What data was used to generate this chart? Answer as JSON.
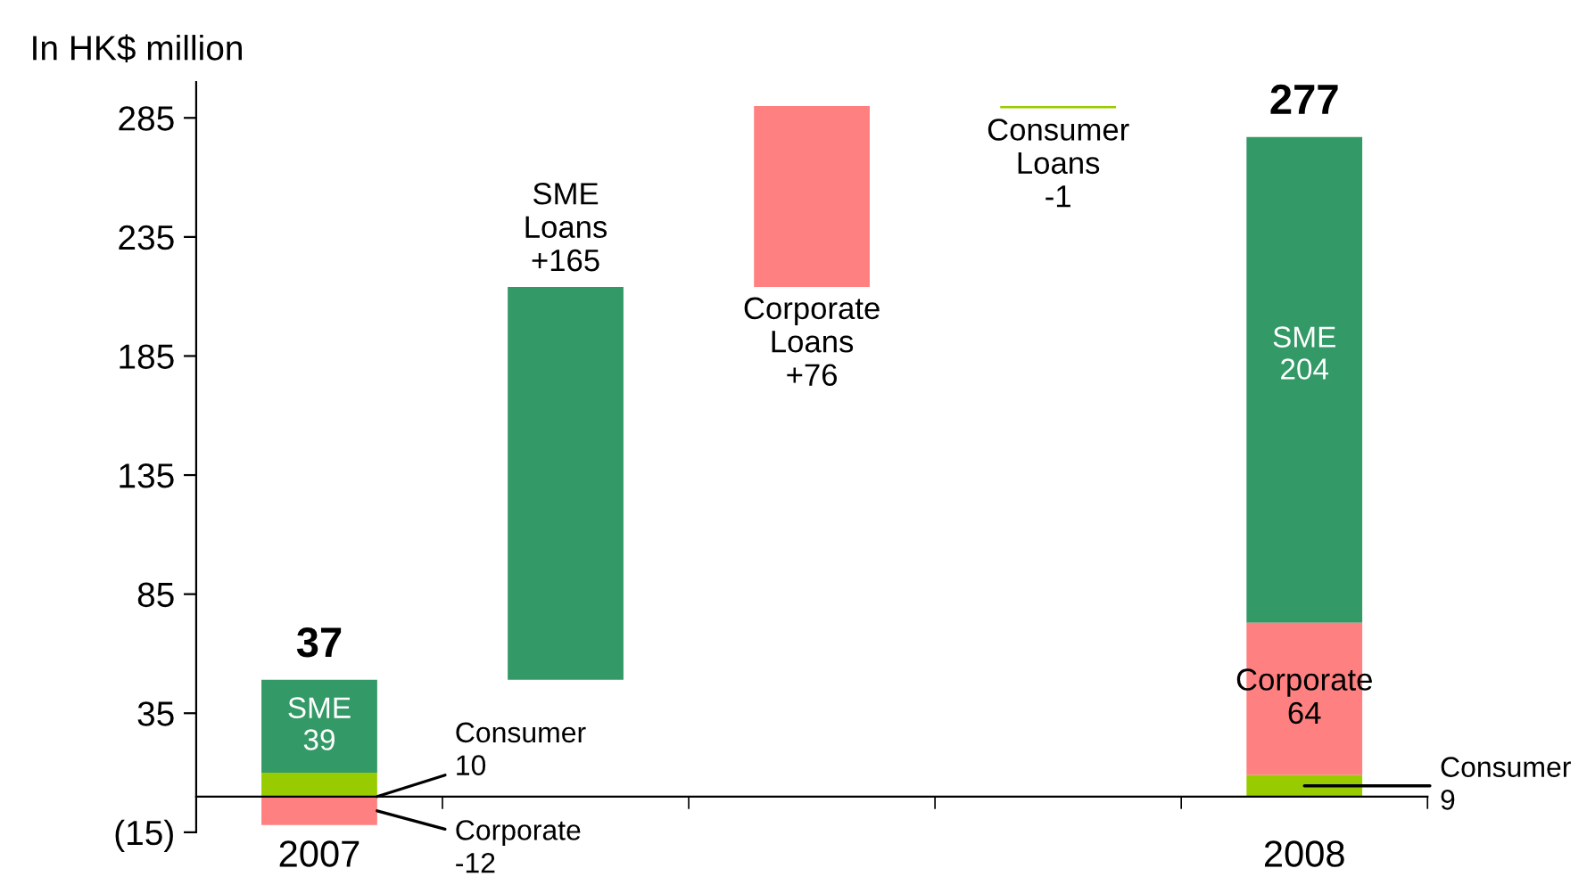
{
  "chart_data": {
    "type": "bar",
    "ylabel": "In HK$ million",
    "categories": [
      "2007",
      null,
      null,
      null,
      "2008"
    ],
    "series": [
      {
        "color": "#339966",
        "values": [
          39,
          165,
          null,
          null,
          204
        ],
        "base": [
          10,
          49,
          null,
          null,
          73
        ],
        "value_labels": [
          "SME\n39",
          "SME\nLoans\n+165",
          null,
          null,
          "SME\n204"
        ]
      },
      {
        "color": "#ff8080",
        "values": [
          -12,
          null,
          76,
          null,
          64
        ],
        "base": [
          0,
          null,
          214,
          null,
          9
        ],
        "value_labels": [
          "Corporate\n-12",
          null,
          "Corporate\nLoans\n+76",
          null,
          "Corporate\n64"
        ]
      },
      {
        "color": "#99cc00",
        "values": [
          10,
          null,
          null,
          -1,
          9
        ],
        "base": [
          0,
          null,
          null,
          290,
          0
        ],
        "value_labels": [
          "Consumer\n10",
          null,
          null,
          "Consumer\nLoans\n-1",
          "Consumer\n9"
        ]
      }
    ],
    "totals": [
      "37",
      null,
      null,
      null,
      "277"
    ],
    "ylim": [
      -15,
      300
    ],
    "yticks": [
      {
        "value": -15,
        "label": "(15)"
      },
      35,
      85,
      135,
      185,
      235,
      285
    ],
    "grid": false,
    "legend": false
  }
}
